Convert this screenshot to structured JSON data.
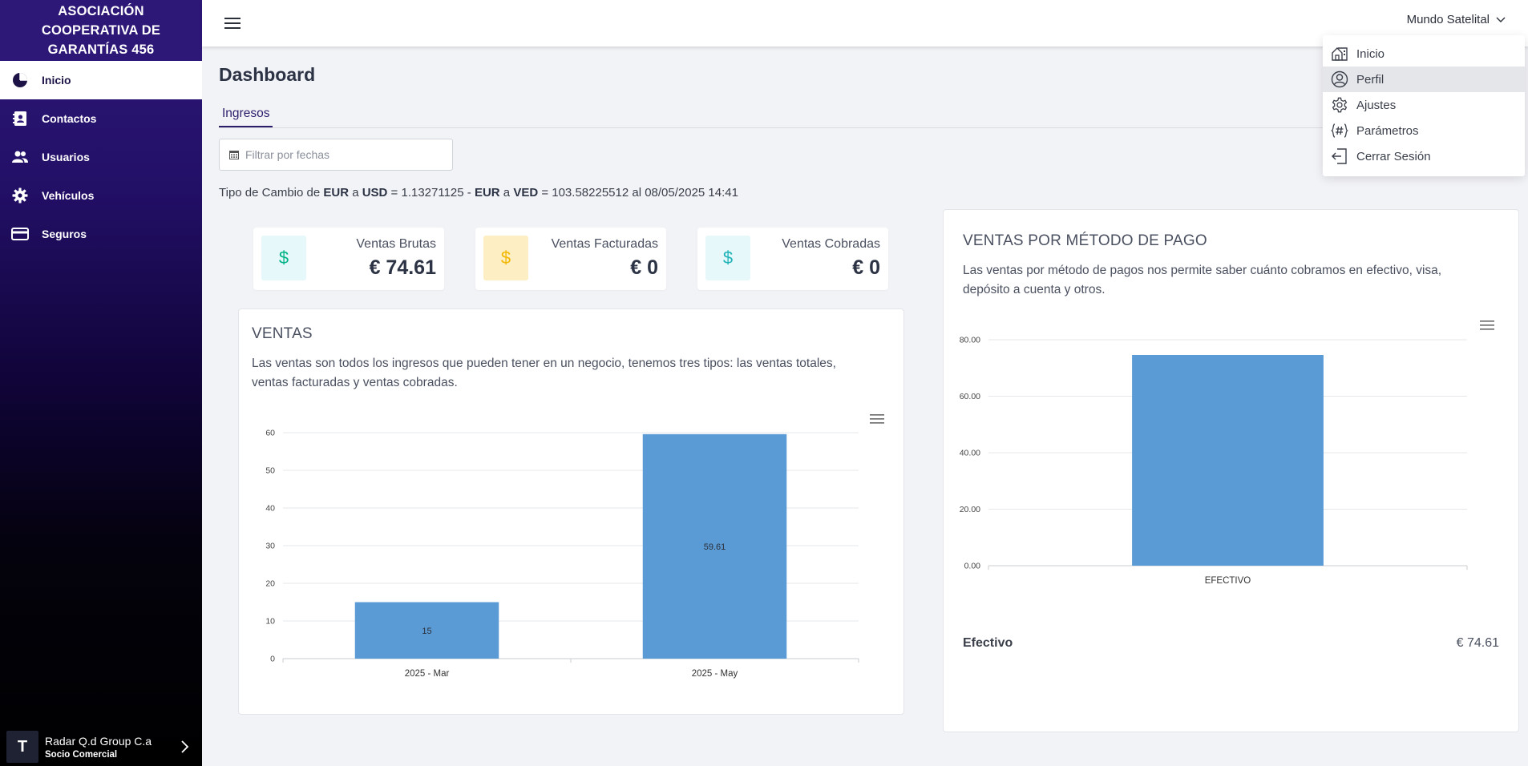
{
  "sidebar": {
    "brand": "ASOCIACIÓN COOPERATIVA DE GARANTÍAS 456",
    "items": [
      {
        "label": "Inicio",
        "icon": "pie-chart-icon"
      },
      {
        "label": "Contactos",
        "icon": "contacts-icon"
      },
      {
        "label": "Usuarios",
        "icon": "users-icon"
      },
      {
        "label": "Vehículos",
        "icon": "gear-icon"
      },
      {
        "label": "Seguros",
        "icon": "credit-card-icon"
      }
    ],
    "footer": {
      "avatar": "T",
      "name": "Radar Q.d Group C.a",
      "role": "Socio Comercial"
    }
  },
  "topbar": {
    "user": "Mundo Satelital"
  },
  "dropdown": {
    "items": [
      {
        "label": "Inicio",
        "icon": "home-icon"
      },
      {
        "label": "Perfil",
        "icon": "user-circle-icon"
      },
      {
        "label": "Ajustes",
        "icon": "settings-icon"
      },
      {
        "label": "Parámetros",
        "icon": "hashtag-icon"
      },
      {
        "label": "Cerrar Sesión",
        "icon": "logout-icon"
      }
    ]
  },
  "main": {
    "title": "Dashboard",
    "tab": "Ingresos",
    "date_filter_placeholder": "Filtrar por fechas",
    "rate": {
      "prefix": "Tipo de Cambio de ",
      "eur": "EUR",
      "a1": " a ",
      "usd": "USD",
      "rate1": " = 1.13271125 - ",
      "eur2": "EUR",
      "a2": " a ",
      "ved": "VED",
      "rate2": " = 103.58225512 al 08/05/2025 14:41"
    },
    "stats": [
      {
        "label": "Ventas Brutas",
        "value": "€ 74.61",
        "color": "#00b386",
        "bg": "#e6f8f9"
      },
      {
        "label": "Ventas Facturadas",
        "value": "€ 0",
        "color": "#f2b700",
        "bg": "#fdeec4"
      },
      {
        "label": "Ventas Cobradas",
        "value": "€ 0",
        "color": "#1fb3b8",
        "bg": "#e6f8f9"
      }
    ],
    "ventas_panel": {
      "title": "VENTAS",
      "desc_line1": "Las ventas son todos los ingresos que pueden tener en un negocio, tenemos tres tipos: las ventas totales,",
      "desc_line2": "ventas facturadas y ventas cobradas."
    },
    "pago_panel": {
      "title": "VENTAS POR MÉTODO DE PAGO",
      "desc_line1": "Las ventas por método de pagos nos permite saber cuánto cobramos en efectivo, visa,",
      "desc_line2": "depósito a cuenta y otros.",
      "legend_name": "Efectivo",
      "legend_value": "€ 74.61"
    }
  },
  "chart_data": [
    {
      "type": "bar",
      "categories": [
        "2025 - Mar",
        "2025 - May"
      ],
      "values": [
        15,
        59.61
      ],
      "data_labels": [
        "15",
        "59.61"
      ],
      "ylim": [
        0,
        60
      ],
      "yticks": [
        "0",
        "10",
        "20",
        "30",
        "40",
        "50",
        "60"
      ],
      "grid": true,
      "color": "#5b9bd5"
    },
    {
      "type": "bar",
      "categories": [
        "EFECTIVO"
      ],
      "values": [
        74.61
      ],
      "ylim": [
        0,
        80
      ],
      "yticks": [
        "0.00",
        "20.00",
        "40.00",
        "60.00",
        "80.00"
      ],
      "grid": true,
      "color": "#5b9bd5"
    }
  ]
}
